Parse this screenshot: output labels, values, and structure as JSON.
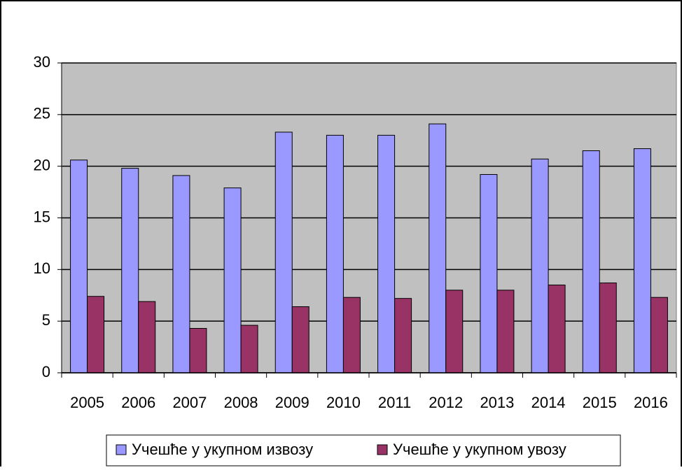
{
  "chart_data": {
    "type": "bar",
    "categories": [
      "2005",
      "2006",
      "2007",
      "2008",
      "2009",
      "2010",
      "2011",
      "2012",
      "2013",
      "2014",
      "2015",
      "2016"
    ],
    "series": [
      {
        "name": "Учешће у укупном извозу",
        "color": "#9999ff",
        "values": [
          20.6,
          19.8,
          19.1,
          17.9,
          23.3,
          23.0,
          23.0,
          24.1,
          19.2,
          20.7,
          21.5,
          21.7
        ]
      },
      {
        "name": "Учешће у укупном увозу",
        "color": "#993366",
        "values": [
          7.4,
          6.9,
          4.3,
          4.6,
          6.4,
          7.3,
          7.2,
          8.0,
          8.0,
          8.5,
          8.7,
          7.3
        ]
      }
    ],
    "ylim": [
      0,
      30
    ],
    "yticks": [
      0,
      5,
      10,
      15,
      20,
      25,
      30
    ],
    "grid": true,
    "legend": "bottom"
  }
}
